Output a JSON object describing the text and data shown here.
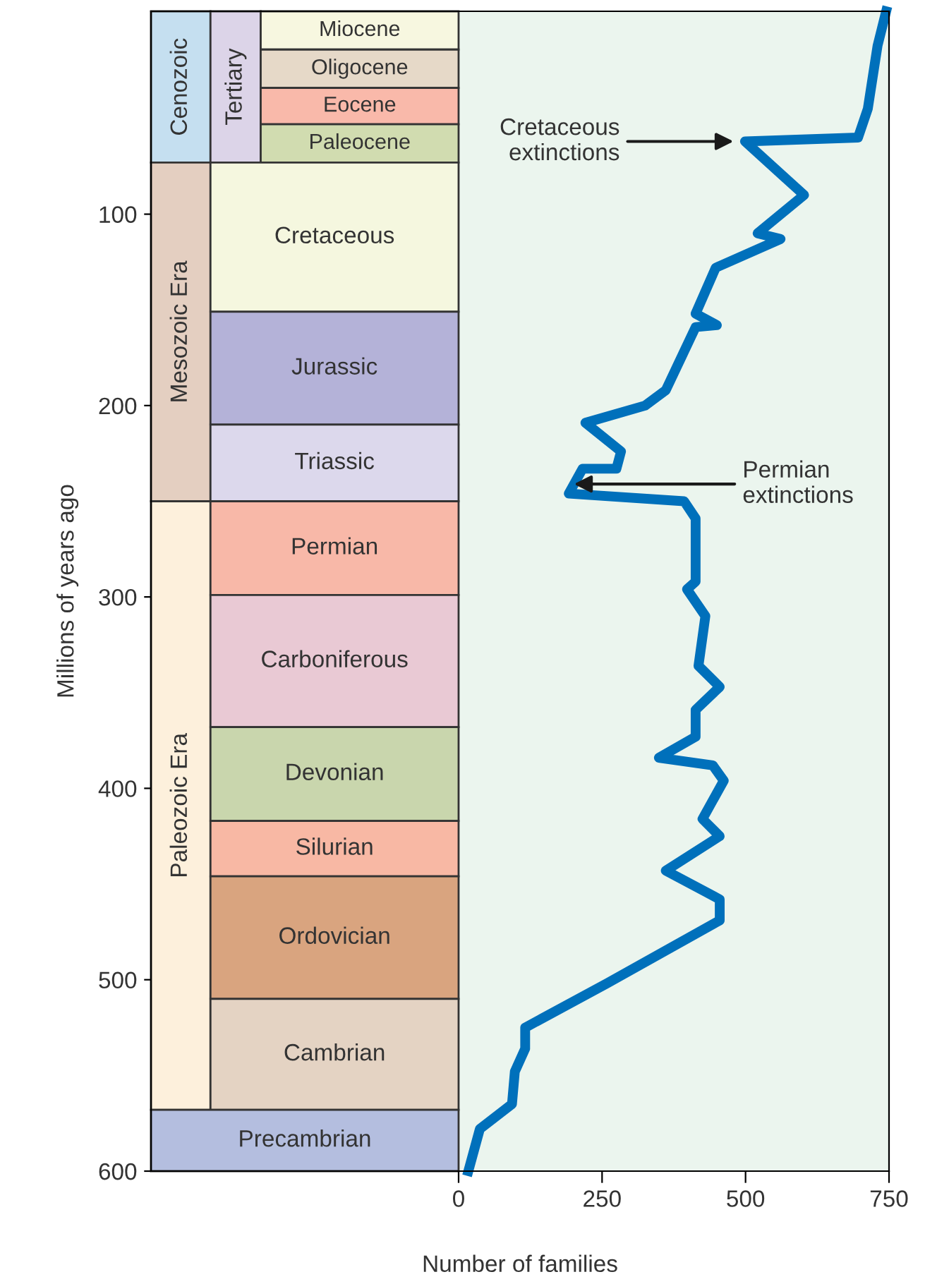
{
  "chart_data": {
    "type": "line",
    "xlabel": "Number of families",
    "ylabel": "Millions of years ago",
    "xlim": [
      -536,
      750
    ],
    "xticks": [
      0,
      250,
      500,
      750
    ],
    "ylim": [
      600,
      -6
    ],
    "yticks": [
      100,
      200,
      300,
      400,
      500,
      600
    ],
    "grid": false,
    "marker": "none",
    "line_style": "solid",
    "series": [
      {
        "color": "#0070bb",
        "x": [
          745,
          730,
          713,
          696,
          499,
          602,
          521,
          561,
          448,
          413,
          450,
          413,
          361,
          325,
          221,
          283,
          275,
          216,
          192,
          393,
          413,
          413,
          398,
          430,
          418,
          455,
          413,
          413,
          349,
          443,
          462,
          425,
          455,
          361,
          455,
          455,
          258,
          116,
          116,
          98,
          93,
          37,
          17
        ],
        "values": [
          -6,
          12,
          45,
          60,
          62,
          90,
          110,
          113,
          128,
          152,
          158,
          159,
          192,
          200,
          209,
          224,
          233,
          233,
          246,
          250,
          259,
          292,
          296,
          310,
          336,
          347,
          359,
          373,
          384,
          388,
          396,
          416,
          425,
          443,
          458,
          469,
          502,
          525,
          536,
          548,
          565,
          578,
          600
        ]
      }
    ],
    "annotations": [
      {
        "text": "Cretaceous\nextinctions",
        "x": 479,
        "y": 62
      },
      {
        "text": "Permian\nextinctions",
        "x": 201,
        "y": 241
      }
    ],
    "bands": [
      {
        "axis": "y",
        "from": -6,
        "to": 73,
        "label": "Cenozoic",
        "color": "#c5dff0"
      },
      {
        "axis": "y",
        "from": -6,
        "to": 73,
        "label": "Tertiary",
        "color": "#dcd4e8"
      },
      {
        "axis": "y",
        "from": -6,
        "to": 14,
        "label": "Miocene",
        "color": "#f7f7e0"
      },
      {
        "axis": "y",
        "from": 14,
        "to": 34,
        "label": "Oligocene",
        "color": "#e6d9c8"
      },
      {
        "axis": "y",
        "from": 34,
        "to": 53,
        "label": "Eocene",
        "color": "#f9b9aa"
      },
      {
        "axis": "y",
        "from": 53,
        "to": 73,
        "label": "Paleocene",
        "color": "#d1dcb0"
      },
      {
        "axis": "y",
        "from": 73,
        "to": 250,
        "label": "Mesozoic Era",
        "color": "#e4cfc1"
      },
      {
        "axis": "y",
        "from": 73,
        "to": 151,
        "label": "Cretaceous",
        "color": "#f5f7df"
      },
      {
        "axis": "y",
        "from": 151,
        "to": 210,
        "label": "Jurassic",
        "color": "#b4b2d8"
      },
      {
        "axis": "y",
        "from": 210,
        "to": 250,
        "label": "Triassic",
        "color": "#dcd8ec"
      },
      {
        "axis": "y",
        "from": 250,
        "to": 568,
        "label": "Paleozoic Era",
        "color": "#fdf0dc"
      },
      {
        "axis": "y",
        "from": 250,
        "to": 299,
        "label": "Permian",
        "color": "#f8b8a8"
      },
      {
        "axis": "y",
        "from": 299,
        "to": 368,
        "label": "Carboniferous",
        "color": "#e9c9d4"
      },
      {
        "axis": "y",
        "from": 368,
        "to": 417,
        "label": "Devonian",
        "color": "#c9d6ad"
      },
      {
        "axis": "y",
        "from": 417,
        "to": 446,
        "label": "Silurian",
        "color": "#f8b8a4"
      },
      {
        "axis": "y",
        "from": 446,
        "to": 510,
        "label": "Ordovician",
        "color": "#d9a47f"
      },
      {
        "axis": "y",
        "from": 510,
        "to": 568,
        "label": "Cambrian",
        "color": "#e4d3c3"
      },
      {
        "axis": "y",
        "from": 568,
        "to": 600,
        "label": "Precambrian",
        "color": "#b4bedf"
      }
    ]
  }
}
